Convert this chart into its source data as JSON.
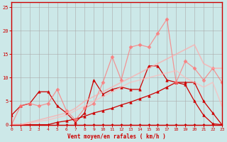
{
  "title": "",
  "xlabel": "Vent moyen/en rafales ( km/h )",
  "background_color": "#cce8e8",
  "grid_color": "#aaaaaa",
  "x_ticks": [
    0,
    1,
    2,
    3,
    4,
    5,
    6,
    7,
    8,
    9,
    10,
    11,
    12,
    13,
    14,
    15,
    16,
    17,
    18,
    19,
    20,
    21,
    22,
    23
  ],
  "y_ticks": [
    0,
    5,
    10,
    15,
    20,
    25
  ],
  "xlim": [
    0,
    23
  ],
  "ylim": [
    0,
    26
  ],
  "series": [
    {
      "x": [
        0,
        1,
        2,
        3,
        4,
        5,
        6,
        7,
        8,
        9,
        10,
        11,
        12,
        13,
        14,
        15,
        16,
        17,
        18,
        19,
        20,
        21,
        22,
        23
      ],
      "y": [
        0,
        0,
        0,
        0,
        0,
        0,
        0,
        0,
        0,
        0,
        0,
        0,
        0,
        0,
        0,
        0,
        0,
        0,
        0,
        0,
        0,
        0,
        0,
        0
      ],
      "color": "#cc0000",
      "alpha": 1.0,
      "lw": 0.9,
      "marker": "D",
      "markersize": 2,
      "linestyle": "-"
    },
    {
      "x": [
        0,
        1,
        2,
        3,
        4,
        5,
        6,
        7,
        8,
        9,
        10,
        11,
        12,
        13,
        14,
        15,
        16,
        17,
        18,
        19,
        20,
        21,
        22,
        23
      ],
      "y": [
        0,
        0,
        0,
        0,
        0,
        0.5,
        0.8,
        1.2,
        1.8,
        2.5,
        3.0,
        3.5,
        4.2,
        4.8,
        5.5,
        6.2,
        7.0,
        8.0,
        9.0,
        8.5,
        5.0,
        2.0,
        0.2,
        0
      ],
      "color": "#cc0000",
      "alpha": 1.0,
      "lw": 0.9,
      "marker": "^",
      "markersize": 2.5,
      "linestyle": "-"
    },
    {
      "x": [
        0,
        1,
        2,
        3,
        4,
        5,
        6,
        7,
        8,
        9,
        10,
        11,
        12,
        13,
        14,
        15,
        16,
        17,
        18,
        19,
        20,
        21,
        22,
        23
      ],
      "y": [
        2,
        4,
        4.5,
        7,
        7,
        4,
        2.5,
        0.5,
        2.5,
        9.5,
        6.5,
        7.5,
        8,
        7.5,
        7.5,
        12.5,
        12.5,
        9.5,
        9,
        9,
        9,
        5,
        2.5,
        0
      ],
      "color": "#cc0000",
      "alpha": 1.0,
      "lw": 0.9,
      "marker": "^",
      "markersize": 2.5,
      "linestyle": "-"
    },
    {
      "x": [
        0,
        1,
        2,
        3,
        4,
        5,
        6,
        7,
        8,
        9,
        10,
        11,
        12,
        13,
        14,
        15,
        16,
        17,
        18,
        19,
        20,
        21,
        22,
        23
      ],
      "y": [
        0,
        4,
        4.5,
        4,
        4.5,
        7.5,
        3,
        1,
        3.5,
        4.5,
        9,
        14.5,
        9.5,
        16.5,
        17,
        16.5,
        19.5,
        22.5,
        9,
        13.5,
        12,
        9.5,
        12,
        9
      ],
      "color": "#ff7777",
      "alpha": 0.75,
      "lw": 0.9,
      "marker": "D",
      "markersize": 2.5,
      "linestyle": "-"
    },
    {
      "x": [
        0,
        1,
        2,
        3,
        4,
        5,
        6,
        7,
        8,
        9,
        10,
        11,
        12,
        13,
        14,
        15,
        16,
        17,
        18,
        19,
        20,
        21,
        22,
        23
      ],
      "y": [
        0,
        0,
        0.5,
        1,
        1.5,
        2,
        2.5,
        3.5,
        5,
        6,
        7,
        8,
        9,
        10,
        11,
        12,
        13,
        14,
        15,
        16,
        17,
        13,
        12,
        12
      ],
      "color": "#ffaaaa",
      "alpha": 0.7,
      "lw": 1.2,
      "marker": null,
      "markersize": 0,
      "linestyle": "-"
    },
    {
      "x": [
        0,
        1,
        2,
        3,
        4,
        5,
        6,
        7,
        8,
        9,
        10,
        11,
        12,
        13,
        14,
        15,
        16,
        17,
        18,
        19,
        20,
        21,
        22,
        23
      ],
      "y": [
        0,
        0,
        0.3,
        0.7,
        1.0,
        1.5,
        2.0,
        3.0,
        4.0,
        5.0,
        6.0,
        7.0,
        8.0,
        9.0,
        9.5,
        10,
        10.5,
        11,
        11.5,
        10,
        9,
        8,
        9,
        4
      ],
      "color": "#ffbbbb",
      "alpha": 0.65,
      "lw": 1.2,
      "marker": null,
      "markersize": 0,
      "linestyle": "-"
    }
  ],
  "xlabel_color": "#cc0000",
  "tick_color": "#cc0000",
  "axis_color": "#cc0000"
}
